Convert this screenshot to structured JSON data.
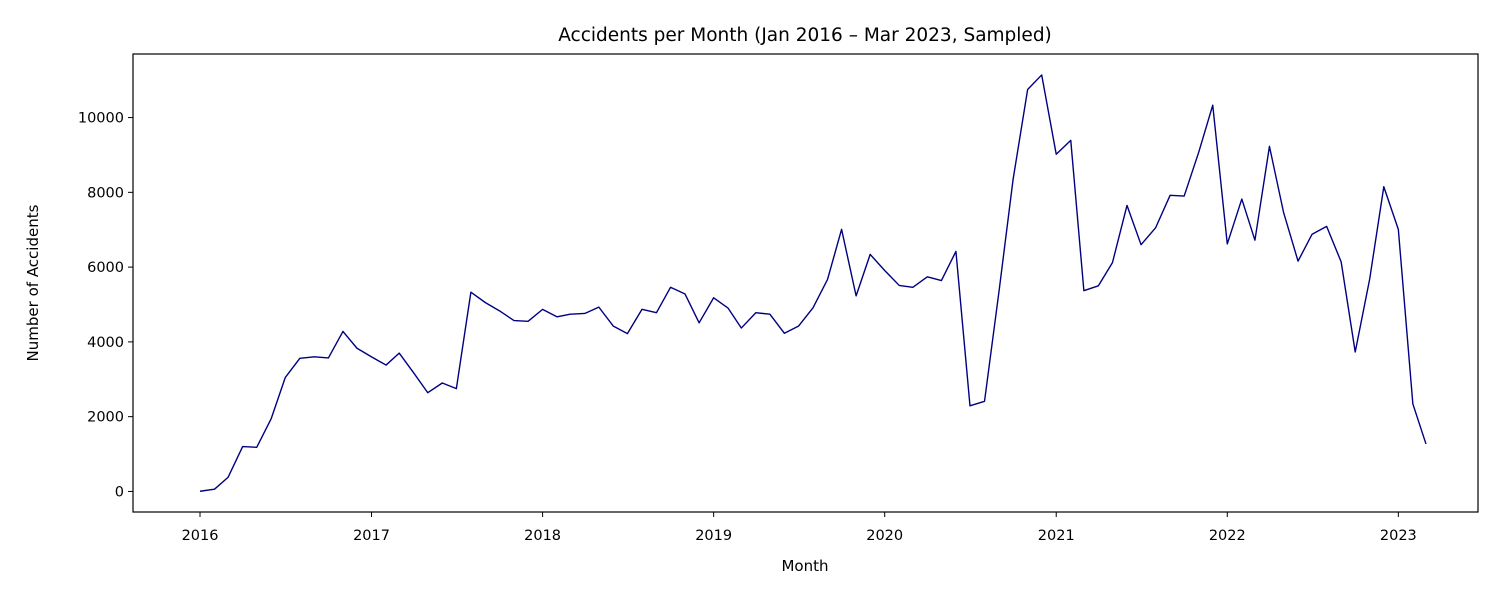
{
  "chart_data": {
    "type": "line",
    "title": "Accidents per Month (Jan 2016 – Mar 2023, Sampled)",
    "xlabel": "Month",
    "ylabel": "Number of Accidents",
    "xlim": [
      "2015-08-11",
      "2023-06-20"
    ],
    "ylim": [
      -550,
      11700
    ],
    "grid": false,
    "line_color": "#000080",
    "x_ticks": [
      {
        "value": "2016-01",
        "label": "2016"
      },
      {
        "value": "2017-01",
        "label": "2017"
      },
      {
        "value": "2018-01",
        "label": "2018"
      },
      {
        "value": "2019-01",
        "label": "2019"
      },
      {
        "value": "2020-01",
        "label": "2020"
      },
      {
        "value": "2021-01",
        "label": "2021"
      },
      {
        "value": "2022-01",
        "label": "2022"
      },
      {
        "value": "2023-01",
        "label": "2023"
      }
    ],
    "y_ticks": [
      0,
      2000,
      4000,
      6000,
      8000,
      10000
    ],
    "series": [
      {
        "x": [
          "2016-01",
          "2016-02",
          "2016-03",
          "2016-04",
          "2016-05",
          "2016-06",
          "2016-07",
          "2016-08",
          "2016-09",
          "2016-10",
          "2016-11",
          "2016-12",
          "2017-01",
          "2017-02",
          "2017-03",
          "2017-04",
          "2017-05",
          "2017-06",
          "2017-07",
          "2017-08",
          "2017-09",
          "2017-10",
          "2017-11",
          "2017-12",
          "2018-01",
          "2018-02",
          "2018-03",
          "2018-04",
          "2018-05",
          "2018-06",
          "2018-07",
          "2018-08",
          "2018-09",
          "2018-10",
          "2018-11",
          "2018-12",
          "2019-01",
          "2019-02",
          "2019-03",
          "2019-04",
          "2019-05",
          "2019-06",
          "2019-07",
          "2019-08",
          "2019-09",
          "2019-10",
          "2019-11",
          "2019-12",
          "2020-01",
          "2020-02",
          "2020-03",
          "2020-04",
          "2020-05",
          "2020-06",
          "2020-07",
          "2020-08",
          "2020-09",
          "2020-10",
          "2020-11",
          "2020-12",
          "2021-01",
          "2021-02",
          "2021-03",
          "2021-04",
          "2021-05",
          "2021-06",
          "2021-07",
          "2021-08",
          "2021-09",
          "2021-10",
          "2021-11",
          "2021-12",
          "2022-01",
          "2022-02",
          "2022-03",
          "2022-04",
          "2022-05",
          "2022-06",
          "2022-07",
          "2022-08",
          "2022-09",
          "2022-10",
          "2022-11",
          "2022-12",
          "2023-01",
          "2023-02",
          "2023-03"
        ],
        "y": [
          5,
          60,
          380,
          1200,
          1180,
          1950,
          3050,
          3560,
          3600,
          3570,
          4280,
          3830,
          3600,
          3380,
          3700,
          3170,
          2640,
          2900,
          2750,
          5330,
          5050,
          4830,
          4570,
          4550,
          4870,
          4670,
          4740,
          4760,
          4930,
          4420,
          4220,
          4870,
          4780,
          5460,
          5280,
          4510,
          5180,
          4900,
          4370,
          4780,
          4740,
          4230,
          4420,
          4910,
          5670,
          7010,
          5230,
          6340,
          5910,
          5510,
          5460,
          5740,
          5640,
          6420,
          2290,
          2410,
          5360,
          8350,
          10750,
          11140,
          9020,
          9390,
          5370,
          5500,
          6120,
          7650,
          6600,
          7050,
          7920,
          7900,
          9070,
          10330,
          6620,
          7820,
          6720,
          9230,
          7470,
          6160,
          6880,
          7090,
          6140,
          3730,
          5690,
          8150,
          7010,
          2340,
          1270
        ]
      }
    ]
  }
}
